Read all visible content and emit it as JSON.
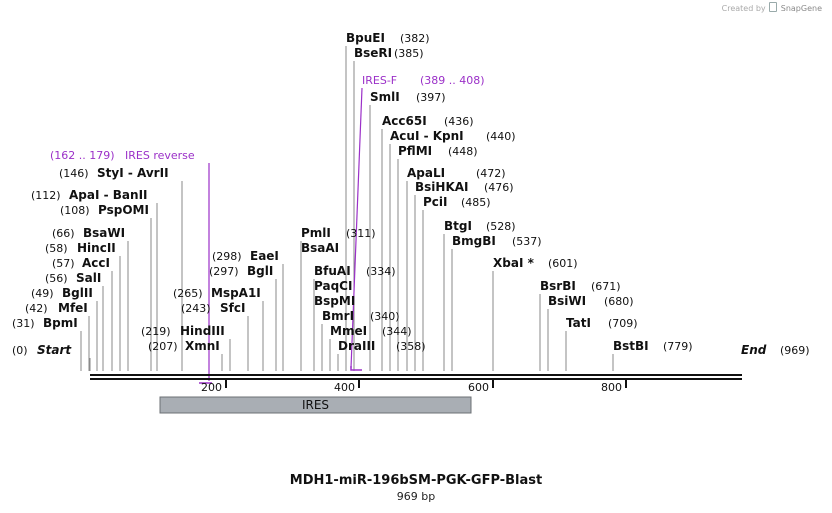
{
  "credit": {
    "prefix": "Created by",
    "brand": "SnapGene"
  },
  "title": "MDH1-miR-196bSM-PGK-GFP-Blast",
  "length": "969 bp",
  "colors": {
    "primer": "#9b30c8",
    "feature": "#a9aeb4",
    "line": "#777777"
  },
  "ends": {
    "start": "Start",
    "start_pos": "(0)",
    "end": "End",
    "end_pos": "(969)"
  },
  "ticks": [
    "200",
    "400",
    "600",
    "800"
  ],
  "feature": {
    "label": "IRES",
    "start": 106,
    "end": 572
  },
  "primers": [
    {
      "name": "IRES-F",
      "range": "(389 .. 408)",
      "start": 389,
      "end": 408,
      "strand": "forward"
    },
    {
      "name": "IRES reverse",
      "range": "(162 .. 179)",
      "start": 162,
      "end": 179,
      "strand": "reverse"
    }
  ],
  "sites": [
    {
      "name": "BpmI",
      "pos": "(31)",
      "bp": 31
    },
    {
      "name": "MfeI",
      "pos": "(42)",
      "bp": 42
    },
    {
      "name": "BglII",
      "pos": "(49)",
      "bp": 49
    },
    {
      "name": "SalI",
      "pos": "(56)",
      "bp": 56
    },
    {
      "name": "AccI",
      "pos": "(57)",
      "bp": 57
    },
    {
      "name": "HincII",
      "pos": "(58)",
      "bp": 58
    },
    {
      "name": "BsaWI",
      "pos": "(66)",
      "bp": 66
    },
    {
      "name": "PspOMI",
      "pos": "(108)",
      "bp": 108
    },
    {
      "name": "ApaI - BanII",
      "pos": "(112)",
      "bp": 112
    },
    {
      "name": "StyI - AvrII",
      "pos": "(146)",
      "bp": 146
    },
    {
      "name": "XmnI",
      "pos": "(207)",
      "bp": 207
    },
    {
      "name": "HindIII",
      "pos": "(219)",
      "bp": 219
    },
    {
      "name": "SfcI",
      "pos": "(243)",
      "bp": 243
    },
    {
      "name": "MspA1I",
      "pos": "(265)",
      "bp": 265
    },
    {
      "name": "BglI",
      "pos": "(297)",
      "bp": 297
    },
    {
      "name": "EaeI",
      "pos": "(298)",
      "bp": 298
    },
    {
      "name": "BsaAI",
      "pos": "",
      "bp": 311
    },
    {
      "name": "PmlI",
      "pos": "(311)",
      "bp": 311
    },
    {
      "name": "BfuAI",
      "pos": "(334)",
      "bp": 334
    },
    {
      "name": "PaqCI",
      "pos": "",
      "bp": 334
    },
    {
      "name": "BspMI",
      "pos": "",
      "bp": 334
    },
    {
      "name": "BmrI",
      "pos": "(340)",
      "bp": 340
    },
    {
      "name": "MmeI",
      "pos": "(344)",
      "bp": 344
    },
    {
      "name": "DraIII",
      "pos": "(358)",
      "bp": 358
    },
    {
      "name": "BpuEI",
      "pos": "(382)",
      "bp": 382
    },
    {
      "name": "BseRI",
      "pos": "(385)",
      "bp": 385
    },
    {
      "name": "SmlI",
      "pos": "(397)",
      "bp": 397
    },
    {
      "name": "Acc65I",
      "pos": "(436)",
      "bp": 436
    },
    {
      "name": "AcuI - KpnI",
      "pos": "(440)",
      "bp": 440
    },
    {
      "name": "PflMI",
      "pos": "(448)",
      "bp": 448
    },
    {
      "name": "ApaLI",
      "pos": "(472)",
      "bp": 472
    },
    {
      "name": "BsiHKAI",
      "pos": "(476)",
      "bp": 476
    },
    {
      "name": "PciI",
      "pos": "(485)",
      "bp": 485
    },
    {
      "name": "BtgI",
      "pos": "(528)",
      "bp": 528
    },
    {
      "name": "BmgBI",
      "pos": "(537)",
      "bp": 537
    },
    {
      "name": "XbaI *",
      "pos": "(601)",
      "bp": 601
    },
    {
      "name": "BsrBI",
      "pos": "(671)",
      "bp": 671
    },
    {
      "name": "BsiWI",
      "pos": "(680)",
      "bp": 680
    },
    {
      "name": "TatI",
      "pos": "(709)",
      "bp": 709
    },
    {
      "name": "BstBI",
      "pos": "(779)",
      "bp": 779
    }
  ]
}
